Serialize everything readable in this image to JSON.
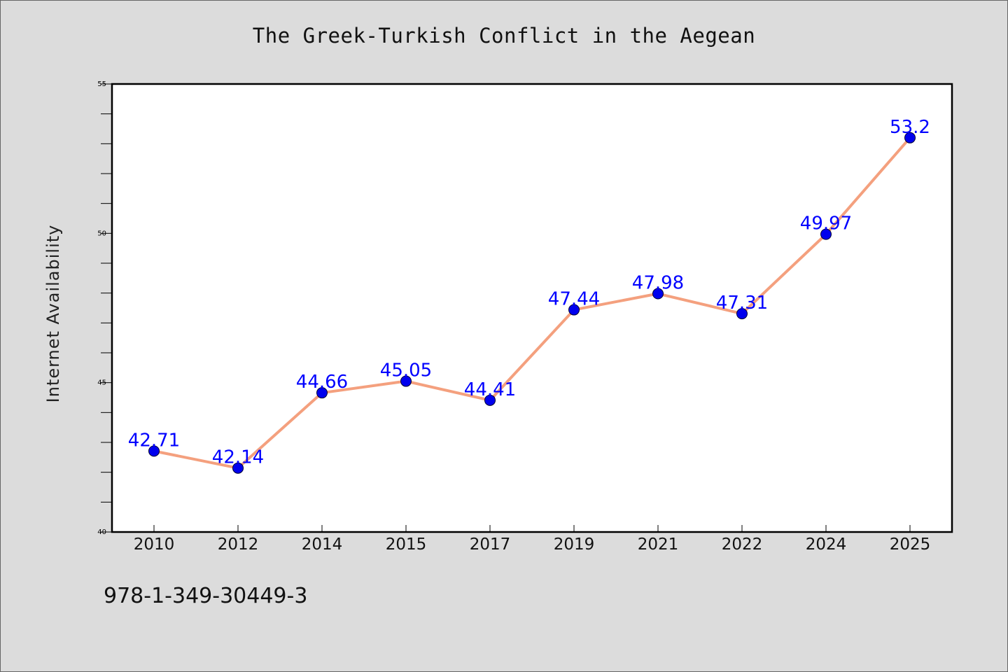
{
  "chart_data": {
    "type": "line",
    "title": "The Greek-Turkish Conflict in the Aegean",
    "xlabel": "",
    "ylabel": "Internet Availability",
    "categories": [
      "2010",
      "2012",
      "2014",
      "2015",
      "2017",
      "2019",
      "2021",
      "2022",
      "2024",
      "2025"
    ],
    "series": [
      {
        "values": [
          42.71,
          42.14,
          44.66,
          45.05,
          44.41,
          47.44,
          47.98,
          47.31,
          49.97,
          53.2
        ],
        "labels": [
          "42.71",
          "42.14",
          "44.66",
          "45.05",
          "44.41",
          "47.44",
          "47.98",
          "47.31",
          "49.97",
          "53.2"
        ]
      }
    ],
    "ylim": [
      40,
      55
    ],
    "yticks": [
      "40",
      "45",
      "50",
      "55"
    ],
    "y_minor_step": 1,
    "grid": false,
    "colors": {
      "line": "#f4a07e",
      "marker": "#0000ee",
      "label": "#0000ff"
    }
  },
  "footer": {
    "isbn": "978-1-349-30449-3"
  }
}
